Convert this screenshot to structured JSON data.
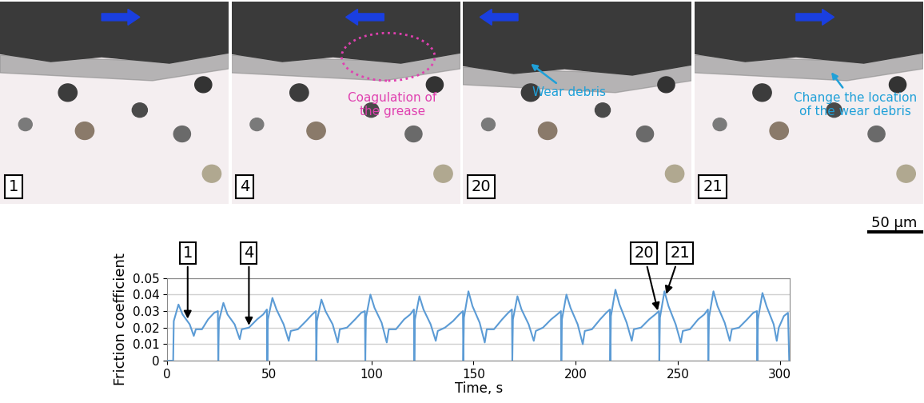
{
  "panels": [
    {
      "label": "1",
      "arrow": "right"
    },
    {
      "label": "4",
      "arrow": "left",
      "note": {
        "lines": [
          "Coagulation of",
          "the grease"
        ],
        "color": "#e040b0"
      }
    },
    {
      "label": "20",
      "arrow": "left",
      "note": {
        "lines": [
          "Wear debris"
        ],
        "color": "#1fa0d8"
      }
    },
    {
      "label": "21",
      "arrow": "right",
      "note": {
        "lines": [
          "Change the location",
          "of the wear debris"
        ],
        "color": "#1fa0d8"
      }
    }
  ],
  "scale_bar": "50 µm",
  "chart_data": {
    "type": "line",
    "x_label": "Time, s",
    "y_label": "Friction coefficient",
    "color": "#5b9bd5",
    "grid": true,
    "xlim": [
      0,
      305
    ],
    "xticks": [
      0,
      50,
      100,
      150,
      200,
      250,
      300
    ],
    "ylim": [
      0,
      0.05
    ],
    "yticks": [
      0,
      0.01,
      0.02,
      0.03,
      0.04,
      0.05
    ],
    "x": [
      0,
      2.9,
      3.2,
      5.5,
      7.5,
      11,
      13,
      14,
      17,
      20,
      23,
      24.8,
      25,
      25.3,
      27.5,
      29.5,
      33,
      35.5,
      36.5,
      40,
      44,
      47,
      48.8,
      49,
      49.3,
      51.5,
      53.5,
      57,
      59.5,
      60.5,
      64,
      68,
      71,
      72.8,
      73,
      73.3,
      75.5,
      77.5,
      81,
      83.5,
      84.5,
      88,
      92,
      95,
      96.8,
      97,
      97.3,
      99.5,
      101.5,
      105,
      107.5,
      108.5,
      112,
      116,
      119,
      120.8,
      121,
      121.3,
      123.5,
      125.5,
      129,
      131.5,
      132.5,
      136,
      140,
      143,
      144.8,
      145,
      145.3,
      147.5,
      149.5,
      153,
      155.5,
      156.5,
      160,
      164,
      167,
      168.8,
      169,
      169.3,
      171.5,
      173.5,
      177,
      179.5,
      180.5,
      184,
      188,
      191,
      192.8,
      193,
      193.3,
      195.5,
      197.5,
      201,
      203.5,
      204.5,
      208,
      212,
      215,
      216.8,
      217,
      217.3,
      219.5,
      221.5,
      225,
      227.5,
      228.5,
      232,
      236,
      239,
      240.8,
      241,
      241.3,
      243.5,
      245.5,
      249,
      251.5,
      252.5,
      256,
      260,
      263,
      264.8,
      265,
      265.3,
      267.5,
      269.5,
      273,
      275.5,
      276.5,
      280,
      284,
      287,
      288.8,
      289,
      289.3,
      291.5,
      293.5,
      297,
      298.5,
      299.5,
      302,
      304,
      304.6
    ],
    "values": [
      0,
      0,
      0.024,
      0.034,
      0.028,
      0.022,
      0.015,
      0.019,
      0.019,
      0.025,
      0.029,
      0.03,
      0,
      0.024,
      0.035,
      0.028,
      0.022,
      0.013,
      0.019,
      0.02,
      0.025,
      0.028,
      0.031,
      0,
      0.025,
      0.038,
      0.031,
      0.022,
      0.012,
      0.018,
      0.019,
      0.024,
      0.028,
      0.03,
      0,
      0.024,
      0.037,
      0.03,
      0.022,
      0.011,
      0.019,
      0.02,
      0.025,
      0.029,
      0.03,
      0,
      0.026,
      0.04,
      0.032,
      0.023,
      0.011,
      0.019,
      0.019,
      0.025,
      0.028,
      0.031,
      0,
      0.025,
      0.039,
      0.031,
      0.022,
      0.012,
      0.018,
      0.02,
      0.024,
      0.028,
      0.03,
      0,
      0.026,
      0.042,
      0.033,
      0.023,
      0.011,
      0.019,
      0.019,
      0.025,
      0.029,
      0.031,
      0,
      0.025,
      0.039,
      0.031,
      0.022,
      0.012,
      0.018,
      0.02,
      0.025,
      0.028,
      0.03,
      0,
      0.025,
      0.04,
      0.032,
      0.022,
      0.01,
      0.018,
      0.019,
      0.025,
      0.029,
      0.031,
      0,
      0.027,
      0.043,
      0.034,
      0.023,
      0.012,
      0.019,
      0.02,
      0.025,
      0.028,
      0.03,
      0,
      0.026,
      0.042,
      0.033,
      0.022,
      0.011,
      0.018,
      0.019,
      0.025,
      0.028,
      0.031,
      0,
      0.026,
      0.042,
      0.033,
      0.023,
      0.012,
      0.019,
      0.02,
      0.025,
      0.029,
      0.03,
      0,
      0.025,
      0.041,
      0.033,
      0.022,
      0.012,
      0.02,
      0.027,
      0.029,
      0
    ],
    "annotations": [
      {
        "text": "1",
        "x": 10,
        "y": 0.024
      },
      {
        "text": "4",
        "x": 40,
        "y": 0.02
      },
      {
        "text": "20",
        "x": 240.5,
        "y": 0.029
      },
      {
        "text": "21",
        "x": 244,
        "y": 0.039
      }
    ]
  }
}
